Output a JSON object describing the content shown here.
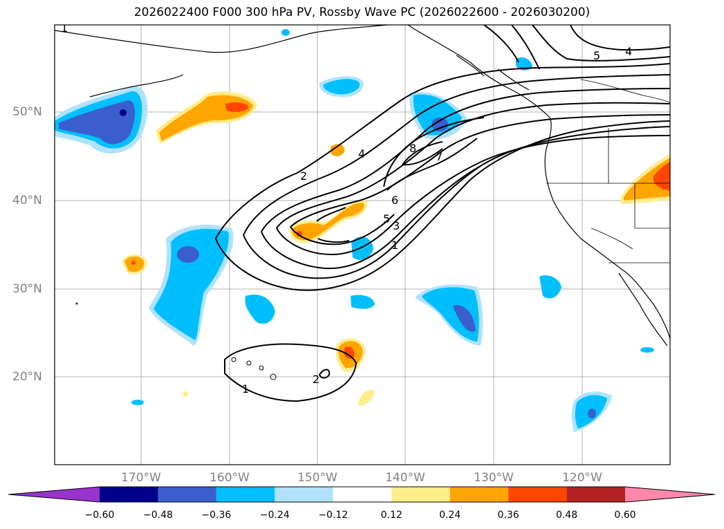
{
  "title": "2026022400 F000 300 hPa PV, Rossby Wave PC (2026022600 - 2026030200)",
  "map": {
    "lat_labels": [
      "50°N",
      "40°N",
      "30°N",
      "20°N"
    ],
    "lon_labels": [
      "170°W",
      "160°W",
      "150°W",
      "140°W",
      "130°W",
      "120°W"
    ],
    "contour_labels": [
      "1",
      "2",
      "4",
      "8",
      "7",
      "6",
      "5",
      "3",
      "1",
      "2",
      "1",
      "5",
      "4"
    ]
  },
  "colorbar": {
    "ticks": [
      "−0.60",
      "−0.48",
      "−0.36",
      "−0.24",
      "−0.12",
      "0.12",
      "0.24",
      "0.36",
      "0.48",
      "0.60"
    ],
    "colors": [
      "#9933cc",
      "#00008b",
      "#3a5fcd",
      "#00bfff",
      "#b0e2ff",
      "#ffffff",
      "#ffec8b",
      "#ffa500",
      "#ff4500",
      "#b22222",
      "#ff88aa"
    ]
  }
}
